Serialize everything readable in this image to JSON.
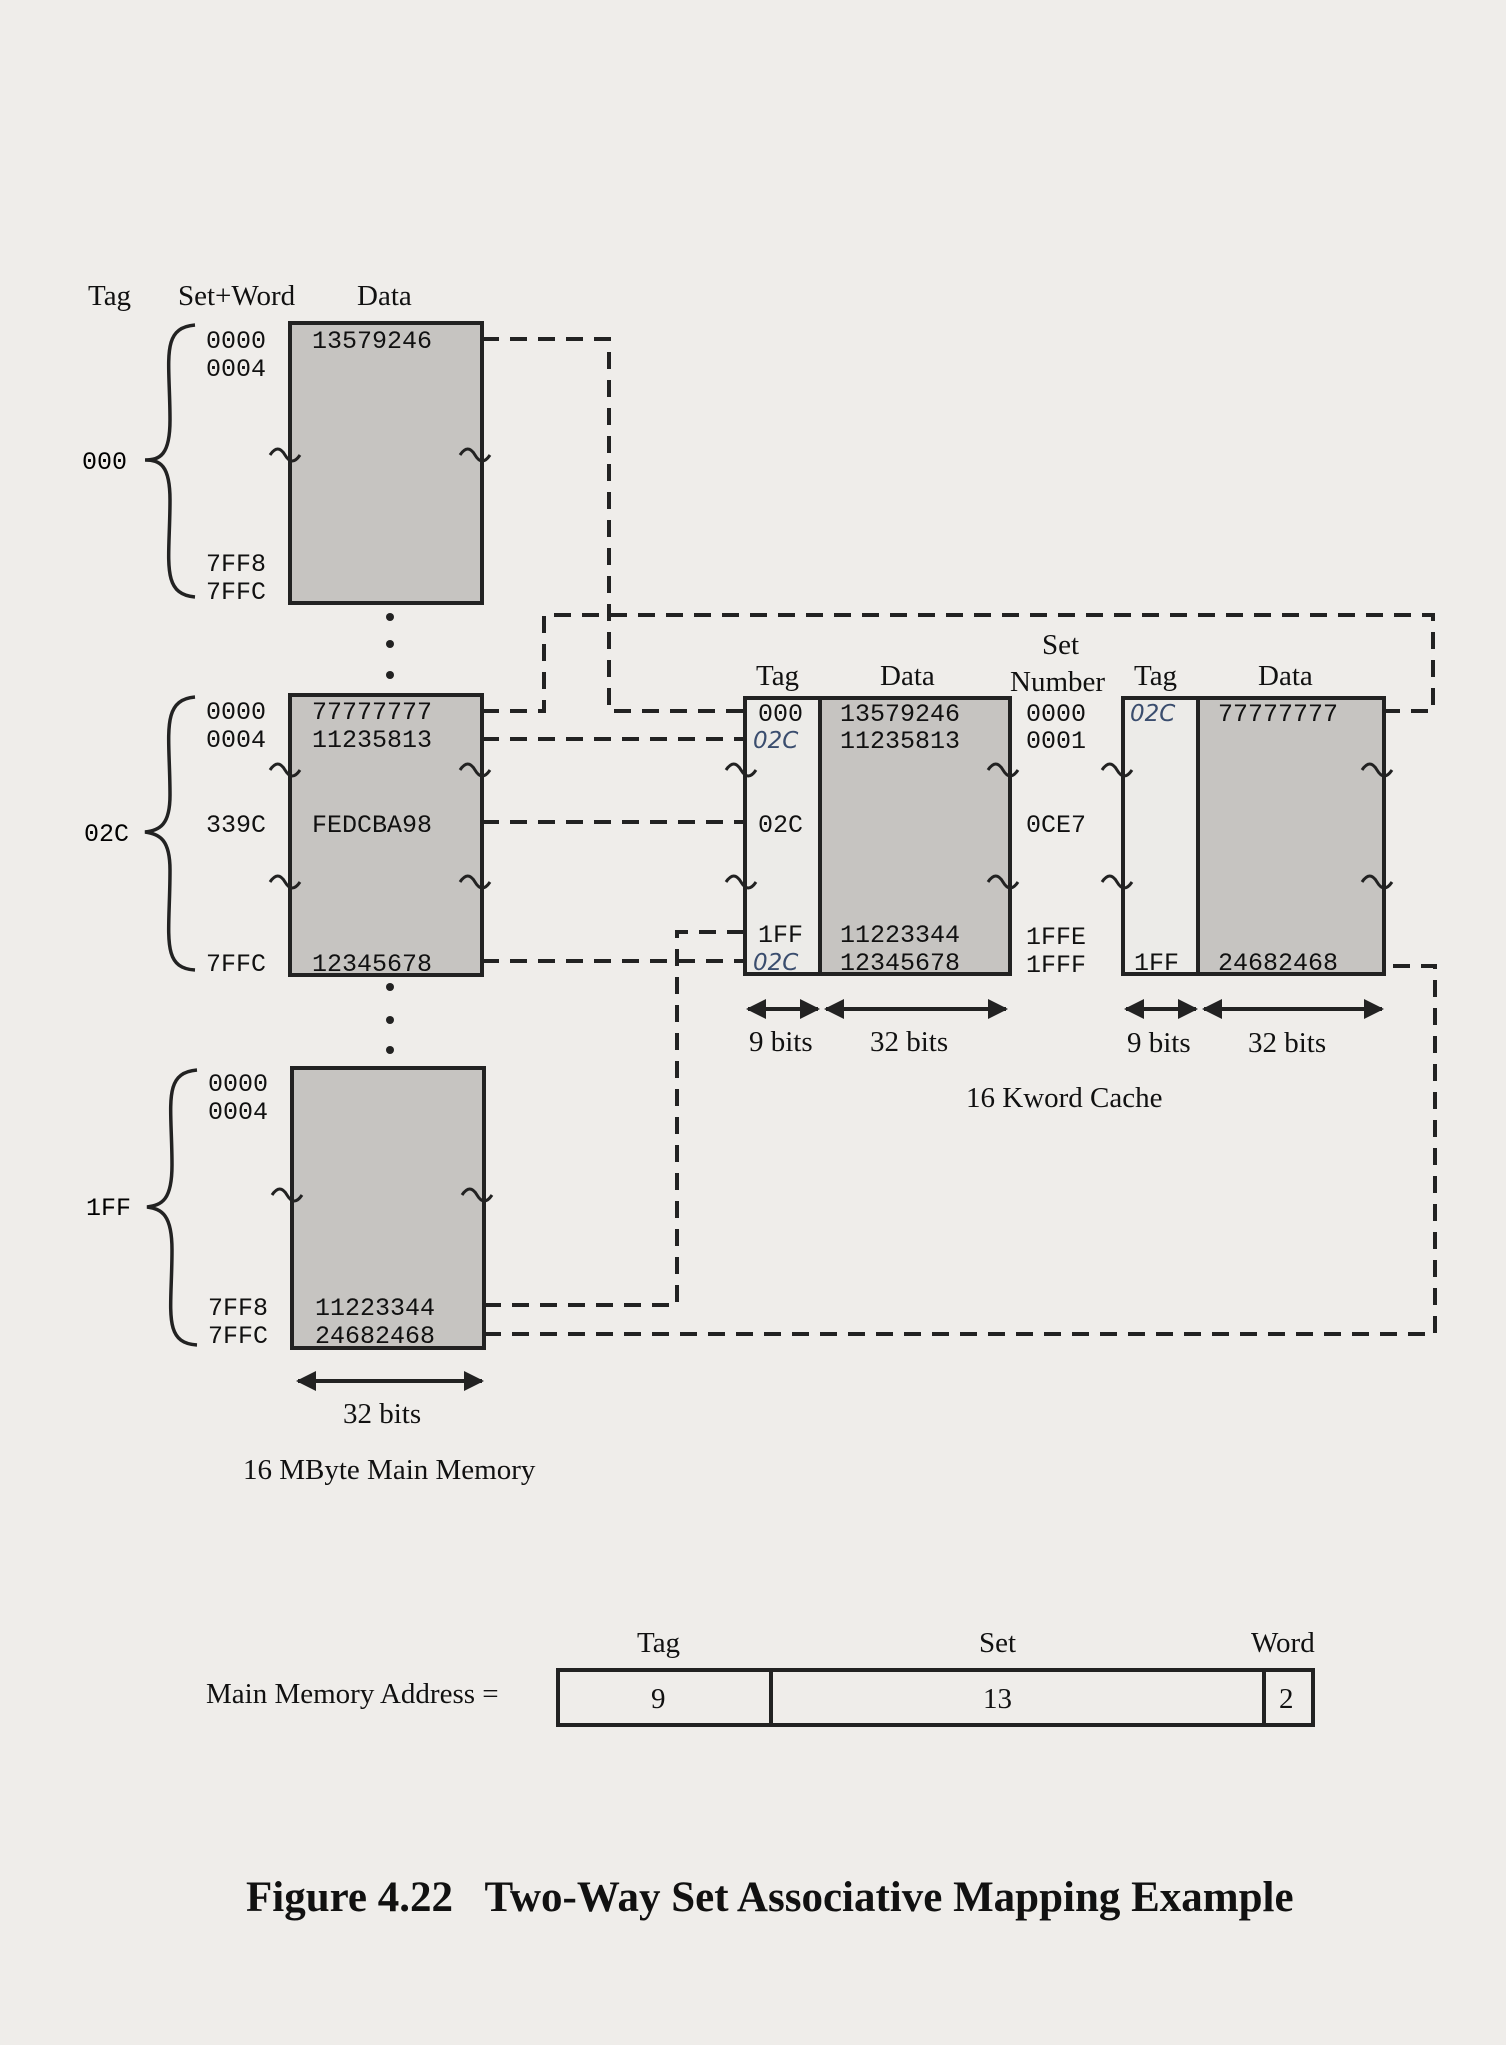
{
  "main_memory": {
    "headers": {
      "tag": "Tag",
      "set_word": "Set+Word",
      "data": "Data"
    },
    "blocks": [
      {
        "tag": "000",
        "top_addresses": [
          "0000",
          "0004"
        ],
        "bottom_addresses": [
          "7FF8",
          "7FFC"
        ],
        "top_values": [
          "13579246",
          ""
        ],
        "mid_address": "",
        "mid_value": "",
        "bottom_values": [
          "",
          ""
        ]
      },
      {
        "tag": "02C",
        "top_addresses": [
          "0000",
          "0004"
        ],
        "bottom_addresses": [
          "",
          "7FFC"
        ],
        "top_values": [
          "77777777",
          "11235813"
        ],
        "mid_address": "339C",
        "mid_value": "FEDCBA98",
        "bottom_values": [
          "",
          "12345678"
        ]
      },
      {
        "tag": "1FF",
        "top_addresses": [
          "0000",
          "0004"
        ],
        "bottom_addresses": [
          "7FF8",
          "7FFC"
        ],
        "top_values": [
          "",
          ""
        ],
        "mid_address": "",
        "mid_value": "",
        "bottom_values": [
          "11223344",
          "24682468"
        ]
      }
    ],
    "width_label": "32 bits",
    "caption": "16 MByte Main Memory"
  },
  "cache": {
    "way1": {
      "tag_header": "Tag",
      "data_header": "Data",
      "tags": [
        "000",
        "02C",
        "02C",
        "1FF",
        "02C"
      ],
      "data": [
        "13579246",
        "11235813",
        "",
        "11223344",
        "12345678"
      ],
      "tag_width": "9 bits",
      "data_width": "32 bits"
    },
    "set_header": [
      "Set",
      "Number"
    ],
    "sets": [
      "0000",
      "0001",
      "0CE7",
      "1FFE",
      "1FFF"
    ],
    "way2": {
      "tag_header": "Tag",
      "data_header": "Data",
      "tags": [
        "02C",
        "1FF"
      ],
      "data": [
        "77777777",
        "24682468"
      ],
      "tag_width": "9 bits",
      "data_width": "32 bits"
    },
    "caption": "16 Kword Cache"
  },
  "address_format": {
    "label": "Main Memory Address =",
    "fields": [
      {
        "name": "Tag",
        "bits": "9"
      },
      {
        "name": "Set",
        "bits": "13"
      },
      {
        "name": "Word",
        "bits": "2"
      }
    ]
  },
  "figure_caption": "Figure 4.22   Two-Way Set Associative Mapping Example"
}
